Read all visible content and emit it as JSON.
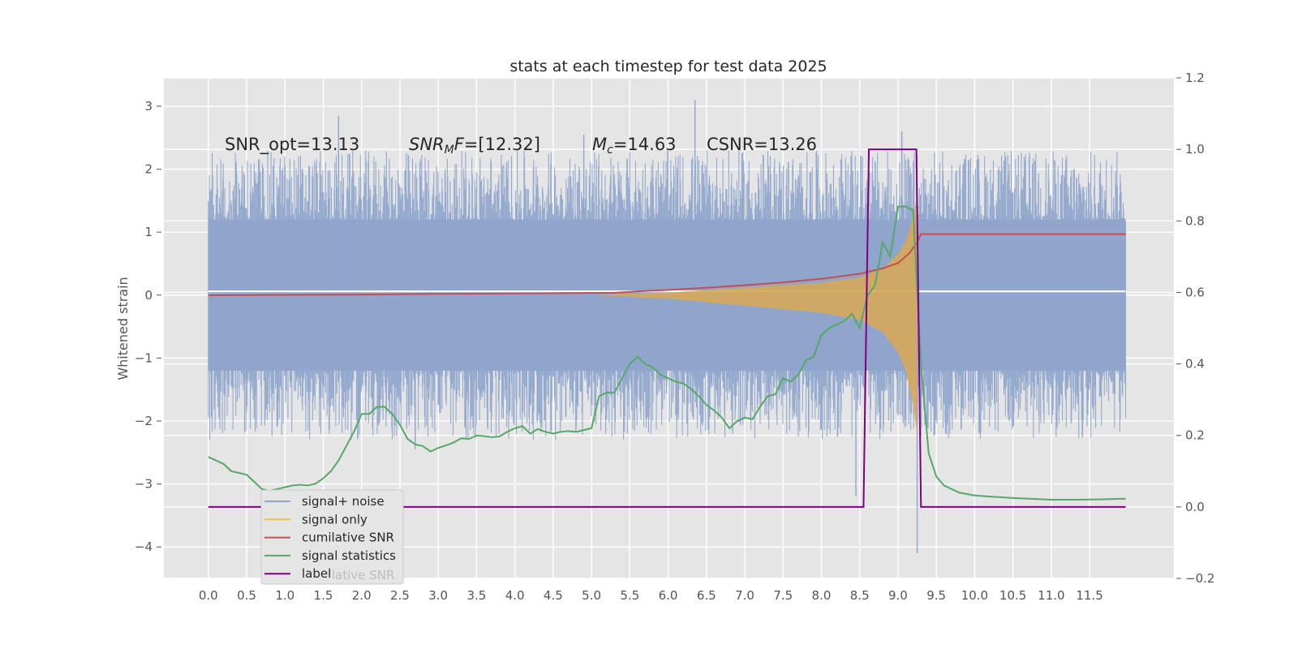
{
  "chart_data": {
    "type": "line",
    "title": "stats at each timestep for test data 2025",
    "ylabel": "Whitened strain",
    "xlabel": "",
    "xlim": [
      -0.58,
      12.6
    ],
    "ylim": [
      -4.5,
      3.45
    ],
    "y2lim": [
      -0.2,
      1.2
    ],
    "grid": true,
    "legend_position": "lower-left",
    "x_ticks": [
      "0.0",
      "0.5",
      "1.0",
      "1.5",
      "2.0",
      "2.5",
      "3.0",
      "3.5",
      "4.0",
      "4.5",
      "5.0",
      "5.5",
      "6.0",
      "6.5",
      "7.0",
      "7.5",
      "8.0",
      "8.5",
      "9.0",
      "9.5",
      "10.0",
      "10.5",
      "11.0",
      "11.5"
    ],
    "y_ticks": [
      "3",
      "2",
      "1",
      "0",
      "−1",
      "−2",
      "−3",
      "−4"
    ],
    "y2_ticks": [
      "1.2",
      "1.0",
      "0.8",
      "0.6",
      "0.4",
      "0.2",
      "0.0",
      "−0.2"
    ],
    "annotations": [
      {
        "parts": [
          {
            "t": "SNR_opt=13.13",
            "style": "normal"
          }
        ]
      },
      {
        "parts": [
          {
            "t": "SNR",
            "style": "italic"
          },
          {
            "t": "M",
            "style": "italic-sub"
          },
          {
            "t": "F",
            "style": "italic"
          },
          {
            "t": "=[12.32]",
            "style": "normal"
          }
        ]
      },
      {
        "parts": [
          {
            "t": "M",
            "style": "italic"
          },
          {
            "t": "c",
            "style": "italic-sub"
          },
          {
            "t": "=14.63",
            "style": "normal"
          }
        ]
      },
      {
        "parts": [
          {
            "t": "CSNR=13.26",
            "style": "normal"
          }
        ]
      }
    ],
    "legend": [
      {
        "label": "signal+ noise",
        "color": "#8fa5cc"
      },
      {
        "label": "signal only",
        "color": "#e6c44a"
      },
      {
        "label": "cumilative SNR",
        "color": "#c44e52"
      },
      {
        "label": "signal statistics",
        "color": "#55a868"
      },
      {
        "label": "label",
        "color": "#800080"
      }
    ],
    "legend_ghost_text": "lative SNR",
    "series": [
      {
        "name": "signal+ noise",
        "axis": "left",
        "color": "#8fa5cc",
        "kind": "noise-band",
        "x_range": [
          0.0,
          11.97
        ],
        "typical_range": [
          -1.2,
          1.2
        ],
        "spikes": [
          [
            1.7,
            2.85
          ],
          [
            6.35,
            3.1
          ],
          [
            8.45,
            -3.2
          ],
          [
            9.25,
            -4.1
          ],
          [
            2.7,
            -2.45
          ],
          [
            6.0,
            -0.6
          ],
          [
            4.9,
            2.55
          ],
          [
            9.05,
            2.6
          ]
        ]
      },
      {
        "name": "signal only",
        "axis": "left",
        "color": "#e6c44a",
        "kind": "chirp",
        "x": [
          5.0,
          6.0,
          7.0,
          8.0,
          8.5,
          8.8,
          9.0,
          9.1,
          9.2,
          9.25
        ],
        "amplitude": [
          0.0,
          0.04,
          0.12,
          0.2,
          0.28,
          0.42,
          0.65,
          0.85,
          1.25,
          1.6
        ]
      },
      {
        "name": "cumilative SNR",
        "axis": "right",
        "color": "#c44e52",
        "x": [
          0.0,
          1.0,
          2.0,
          3.0,
          4.0,
          5.3,
          5.6,
          6.0,
          6.5,
          7.0,
          7.5,
          8.0,
          8.5,
          8.8,
          9.0,
          9.15,
          9.25,
          9.3,
          10.0,
          11.0,
          11.97
        ],
        "values": [
          0.592,
          0.593,
          0.594,
          0.596,
          0.597,
          0.599,
          0.603,
          0.607,
          0.613,
          0.62,
          0.628,
          0.638,
          0.652,
          0.667,
          0.682,
          0.71,
          0.74,
          0.763,
          0.763,
          0.763,
          0.763
        ]
      },
      {
        "name": "signal statistics",
        "axis": "right",
        "color": "#55a868",
        "x": [
          0.0,
          0.1,
          0.2,
          0.3,
          0.4,
          0.5,
          0.6,
          0.7,
          0.8,
          0.9,
          1.0,
          1.1,
          1.2,
          1.3,
          1.4,
          1.5,
          1.6,
          1.7,
          1.8,
          1.9,
          2.0,
          2.1,
          2.2,
          2.3,
          2.4,
          2.5,
          2.6,
          2.7,
          2.8,
          2.9,
          3.0,
          3.1,
          3.2,
          3.3,
          3.4,
          3.5,
          3.6,
          3.7,
          3.8,
          3.9,
          4.0,
          4.1,
          4.2,
          4.3,
          4.4,
          4.5,
          4.6,
          4.7,
          4.8,
          4.9,
          5.0,
          5.1,
          5.2,
          5.3,
          5.4,
          5.5,
          5.6,
          5.7,
          5.8,
          5.9,
          6.0,
          6.1,
          6.2,
          6.3,
          6.4,
          6.5,
          6.6,
          6.7,
          6.8,
          6.9,
          7.0,
          7.1,
          7.2,
          7.3,
          7.4,
          7.5,
          7.6,
          7.7,
          7.8,
          7.9,
          8.0,
          8.1,
          8.2,
          8.3,
          8.4,
          8.5,
          8.6,
          8.7,
          8.8,
          8.9,
          9.0,
          9.1,
          9.2,
          9.25,
          9.3,
          9.4,
          9.5,
          9.6,
          9.8,
          10.0,
          10.2,
          10.5,
          10.8,
          11.0,
          11.3,
          11.6,
          11.97
        ],
        "values": [
          0.14,
          0.13,
          0.12,
          0.1,
          0.095,
          0.09,
          0.07,
          0.05,
          0.045,
          0.05,
          0.055,
          0.06,
          0.062,
          0.06,
          0.065,
          0.08,
          0.1,
          0.13,
          0.17,
          0.21,
          0.26,
          0.26,
          0.28,
          0.28,
          0.26,
          0.23,
          0.19,
          0.175,
          0.17,
          0.155,
          0.165,
          0.172,
          0.18,
          0.192,
          0.19,
          0.2,
          0.198,
          0.195,
          0.197,
          0.21,
          0.22,
          0.226,
          0.205,
          0.218,
          0.21,
          0.205,
          0.21,
          0.212,
          0.21,
          0.215,
          0.22,
          0.31,
          0.32,
          0.32,
          0.36,
          0.4,
          0.42,
          0.4,
          0.39,
          0.37,
          0.36,
          0.35,
          0.345,
          0.33,
          0.31,
          0.285,
          0.27,
          0.25,
          0.22,
          0.24,
          0.25,
          0.245,
          0.28,
          0.31,
          0.315,
          0.36,
          0.35,
          0.37,
          0.41,
          0.42,
          0.48,
          0.5,
          0.51,
          0.52,
          0.54,
          0.5,
          0.59,
          0.62,
          0.74,
          0.7,
          0.84,
          0.84,
          0.83,
          0.6,
          0.4,
          0.15,
          0.085,
          0.06,
          0.04,
          0.032,
          0.029,
          0.025,
          0.022,
          0.02,
          0.02,
          0.021,
          0.023
        ]
      },
      {
        "name": "label",
        "axis": "right",
        "color": "#800080",
        "x": [
          0.0,
          8.55,
          8.62,
          9.24,
          9.3,
          11.97
        ],
        "values": [
          0.0,
          0.0,
          1.0,
          1.0,
          0.0,
          0.0
        ]
      }
    ]
  }
}
